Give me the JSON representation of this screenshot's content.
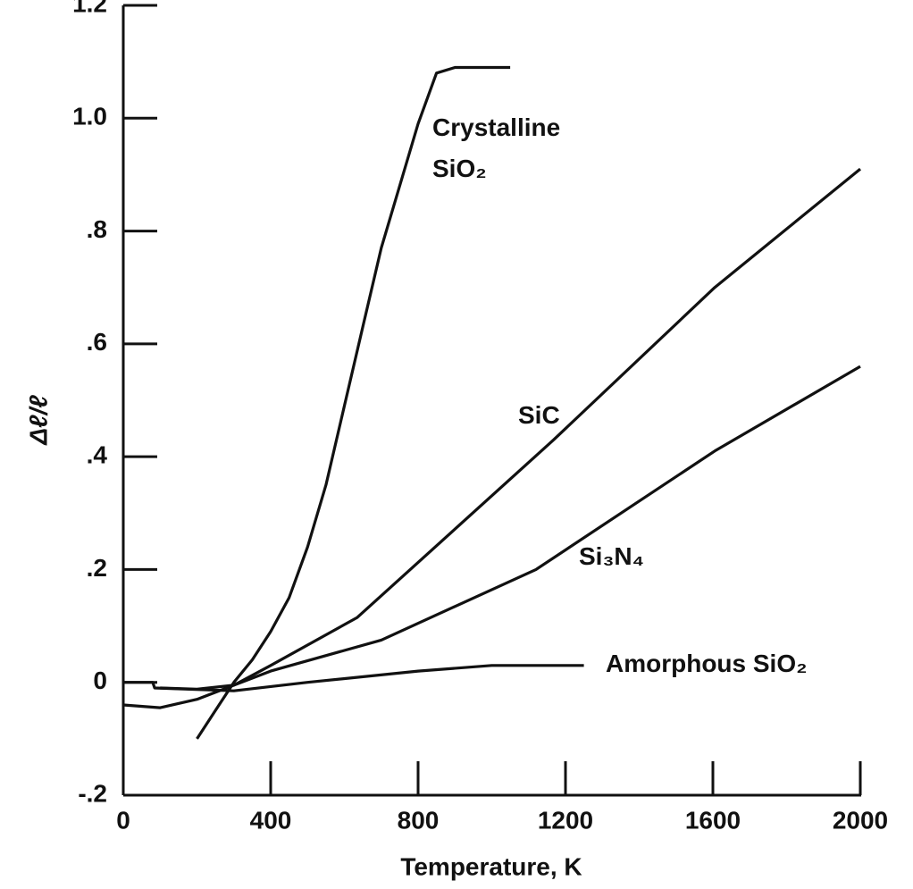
{
  "chart_data": {
    "type": "line",
    "x_label": "Temperature, K",
    "y_label": "Δℓ/ℓ",
    "xlim": [
      0,
      2000
    ],
    "xticks": [
      0,
      400,
      800,
      1200,
      1600,
      2000
    ],
    "ylim": [
      -0.2,
      1.2
    ],
    "yticks": [
      {
        "value": -0.2,
        "label": "-.2"
      },
      0,
      {
        "value": 0.2,
        "label": ".2"
      },
      {
        "value": 0.4,
        "label": ".4"
      },
      {
        "value": 0.6,
        "label": ".6"
      },
      {
        "value": 0.8,
        "label": ".8"
      },
      {
        "value": 1,
        "label": "1.0"
      },
      1.2
    ],
    "series": [
      {
        "name": "Crystalline SiO₂",
        "color": "#111111",
        "x": [
          200,
          250,
          300,
          350,
          400,
          450,
          500,
          550,
          600,
          650,
          700,
          750,
          800,
          850,
          900,
          1050
        ],
        "values": [
          -0.1,
          -0.05,
          0,
          0.04,
          0.09,
          0.15,
          0.24,
          0.35,
          0.49,
          0.63,
          0.77,
          0.88,
          0.99,
          1.08,
          1.09,
          1.09
        ]
      },
      {
        "name": "SiC",
        "color": "#111111",
        "x": [
          0,
          100,
          200,
          300,
          400,
          635,
          1168,
          1605,
          2000
        ],
        "values": [
          -0.04,
          -0.045,
          -0.03,
          -0.005,
          0.03,
          0.115,
          0.43,
          0.7,
          0.91
        ]
      },
      {
        "name": "Si₃N₄",
        "color": "#111111",
        "x": [
          100,
          200,
          300,
          400,
          700,
          1120,
          1605,
          2000
        ],
        "values": [
          -0.01,
          -0.012,
          -0.005,
          0.02,
          0.075,
          0.2,
          0.41,
          0.56
        ]
      },
      {
        "name": "Amorphous SiO₂",
        "color": "#111111",
        "x": [
          0,
          80,
          85,
          300,
          500,
          800,
          1000,
          1250
        ],
        "values": [
          0,
          0,
          -0.01,
          -0.015,
          0.0,
          0.02,
          0.03,
          0.03
        ]
      }
    ]
  }
}
